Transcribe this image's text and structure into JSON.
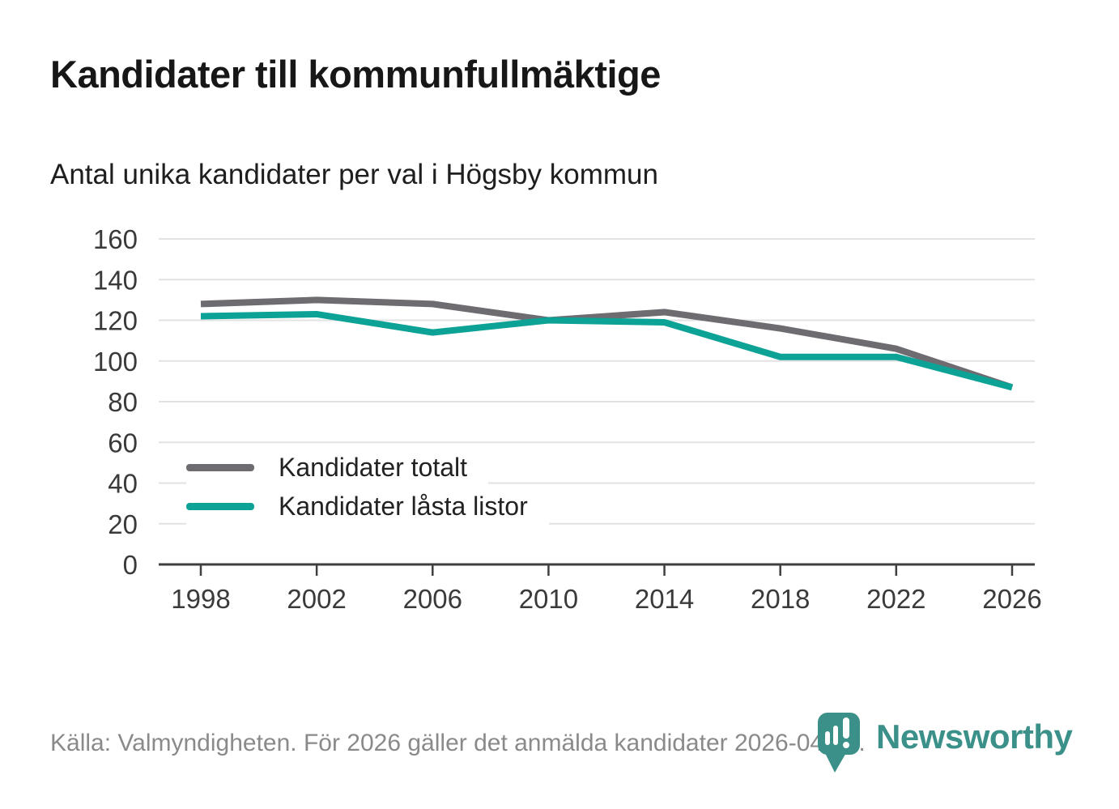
{
  "page": {
    "title": "Kandidater till kommunfullmäktige",
    "subtitle": "Antal unika kandidater per val i Högsby kommun",
    "footer": "Källa: Valmyndigheten. För 2026 gäller det anmälda kandidater 2026-04-10.",
    "brand": {
      "name": "Newsworthy",
      "color": "#3b9189"
    }
  },
  "chart_data": {
    "type": "line",
    "title": "Kandidater till kommunfullmäktige",
    "subtitle": "Antal unika kandidater per val i Högsby kommun",
    "categories": [
      1998,
      2002,
      2006,
      2010,
      2014,
      2018,
      2022,
      2026
    ],
    "series": [
      {
        "name": "Kandidater totalt",
        "color": "#6f6c71",
        "values": [
          128,
          130,
          128,
          120,
          124,
          116,
          106,
          87
        ]
      },
      {
        "name": "Kandidater låsta listor",
        "color": "#0da296",
        "values": [
          122,
          123,
          114,
          120,
          119,
          102,
          102,
          87
        ]
      }
    ],
    "ylim": [
      0,
      160
    ],
    "ytick_step": 20,
    "grid": true,
    "legend_position": "inside-left",
    "colors": {
      "grid": "#e2e2e2",
      "axis": "#3f3f3f",
      "tick_label": "#3a3a3a"
    }
  }
}
